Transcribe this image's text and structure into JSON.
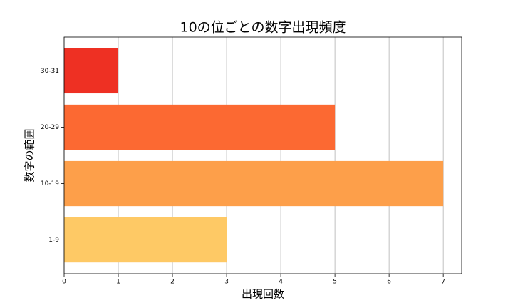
{
  "chart_data": {
    "type": "barh",
    "title": "10の位ごとの数字出現頻度",
    "xlabel": "出現回数",
    "ylabel": "数字の範囲",
    "categories": [
      "1-9",
      "10-19",
      "20-29",
      "30-31"
    ],
    "values": [
      3,
      7,
      5,
      1
    ],
    "colors": [
      "#fec965",
      "#fd9f4a",
      "#fc6932",
      "#ee3023"
    ],
    "xlim": [
      0,
      7.34
    ],
    "xticks": [
      0,
      1,
      2,
      3,
      4,
      5,
      6,
      7
    ],
    "grid": true
  }
}
